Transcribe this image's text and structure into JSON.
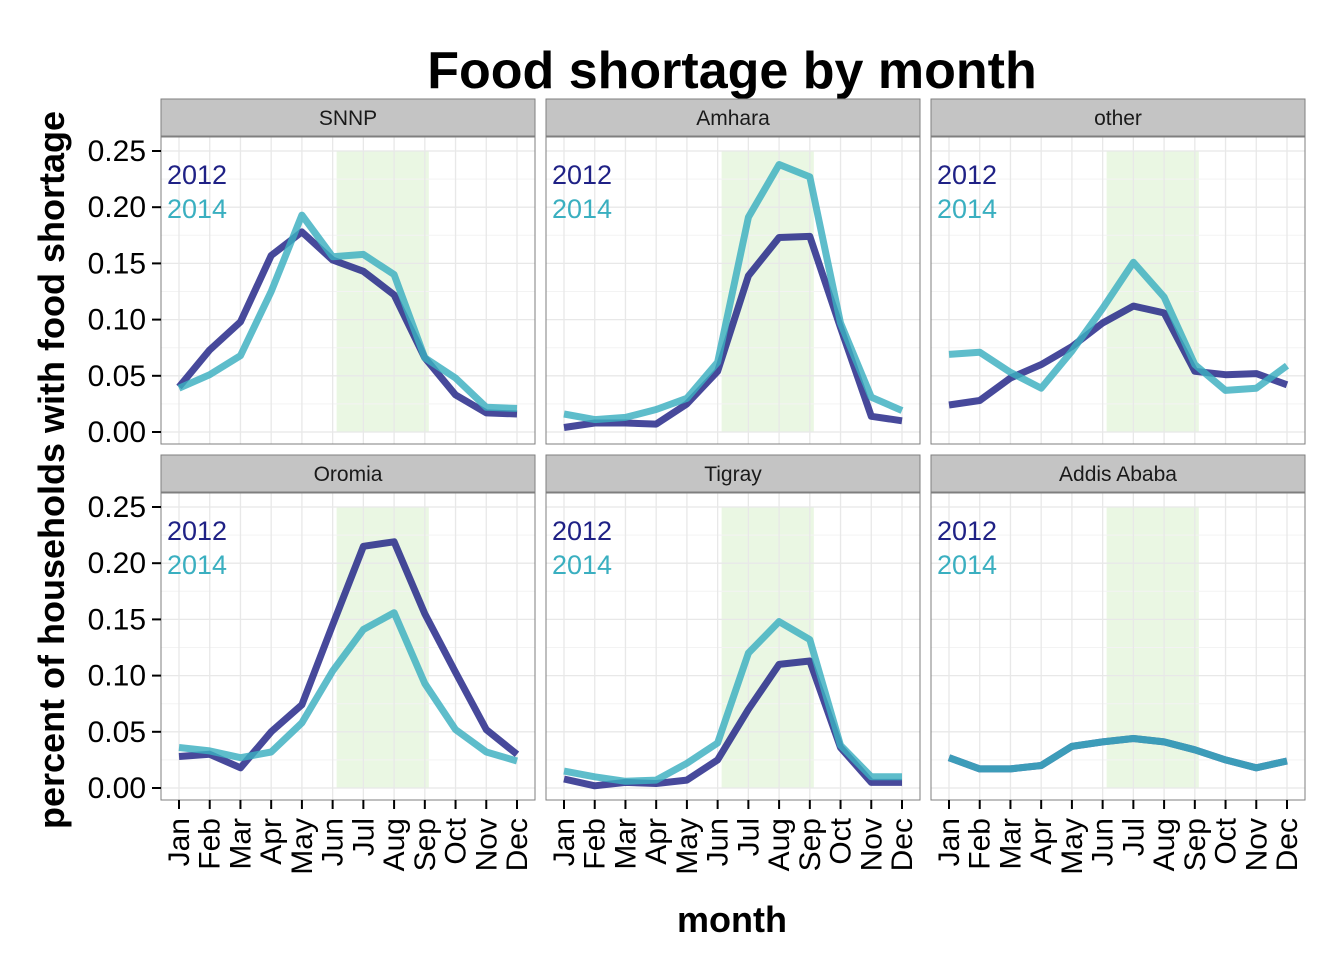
{
  "chart_data": {
    "type": "line",
    "title": "Food shortage by month",
    "xlabel": "month",
    "ylabel": "percent of households with food shortage",
    "ylim": [
      -0.01,
      0.25
    ],
    "yticks": [
      "0.00",
      "0.05",
      "0.10",
      "0.15",
      "0.20",
      "0.25"
    ],
    "categories": [
      "Jan",
      "Feb",
      "Mar",
      "Apr",
      "May",
      "Jun",
      "Jul",
      "Aug",
      "Sep",
      "Oct",
      "Nov",
      "Dec"
    ],
    "highlight_months": [
      "Jun",
      "Sep"
    ],
    "grid": true,
    "legend_placement": "top-left inside each panel",
    "colors": {
      "2012": "#1f2185",
      "2014": "#3aafc0",
      "highlight": "#eaf7e3",
      "strip": "#c4c4c4",
      "grid": "#e8e8e8"
    },
    "panels": [
      {
        "name": "SNNP",
        "series": [
          {
            "name": "2012",
            "values": [
              0.04,
              0.073,
              0.098,
              0.157,
              0.178,
              0.153,
              0.143,
              0.122,
              0.066,
              0.033,
              0.017,
              0.016
            ]
          },
          {
            "name": "2014",
            "values": [
              0.039,
              0.051,
              0.068,
              0.125,
              0.193,
              0.156,
              0.158,
              0.14,
              0.066,
              0.048,
              0.022,
              0.021
            ]
          }
        ]
      },
      {
        "name": "Amhara",
        "series": [
          {
            "name": "2012",
            "values": [
              0.004,
              0.008,
              0.008,
              0.007,
              0.025,
              0.054,
              0.139,
              0.173,
              0.174,
              0.093,
              0.014,
              0.01
            ]
          },
          {
            "name": "2014",
            "values": [
              0.016,
              0.011,
              0.013,
              0.02,
              0.03,
              0.062,
              0.191,
              0.238,
              0.227,
              0.097,
              0.031,
              0.019
            ]
          }
        ]
      },
      {
        "name": "other",
        "series": [
          {
            "name": "2012",
            "values": [
              0.024,
              0.028,
              0.048,
              0.06,
              0.076,
              0.097,
              0.112,
              0.106,
              0.054,
              0.051,
              0.052,
              0.042
            ]
          },
          {
            "name": "2014",
            "values": [
              0.069,
              0.071,
              0.053,
              0.039,
              0.072,
              0.11,
              0.151,
              0.12,
              0.06,
              0.037,
              0.039,
              0.059
            ]
          }
        ]
      },
      {
        "name": "Oromia",
        "series": [
          {
            "name": "2012",
            "values": [
              0.028,
              0.03,
              0.018,
              0.05,
              0.074,
              0.145,
              0.215,
              0.219,
              0.155,
              0.103,
              0.052,
              0.03
            ]
          },
          {
            "name": "2014",
            "values": [
              0.036,
              0.033,
              0.027,
              0.032,
              0.058,
              0.104,
              0.141,
              0.156,
              0.093,
              0.052,
              0.032,
              0.024
            ]
          }
        ]
      },
      {
        "name": "Tigray",
        "series": [
          {
            "name": "2012",
            "values": [
              0.008,
              0.002,
              0.005,
              0.004,
              0.007,
              0.025,
              0.07,
              0.11,
              0.113,
              0.036,
              0.005,
              0.005
            ]
          },
          {
            "name": "2014",
            "values": [
              0.015,
              0.01,
              0.006,
              0.007,
              0.022,
              0.04,
              0.12,
              0.148,
              0.132,
              0.038,
              0.01,
              0.01
            ]
          }
        ]
      },
      {
        "name": "Addis Ababa",
        "series": [
          {
            "name": "2012",
            "values": [
              0.027,
              0.017,
              0.017,
              0.02,
              0.037,
              0.041,
              0.044,
              0.041,
              0.034,
              0.025,
              0.018,
              0.024
            ]
          },
          {
            "name": "2014",
            "values": [
              0.027,
              0.017,
              0.017,
              0.02,
              0.037,
              0.041,
              0.044,
              0.041,
              0.034,
              0.025,
              0.018,
              0.024
            ]
          }
        ]
      }
    ]
  }
}
